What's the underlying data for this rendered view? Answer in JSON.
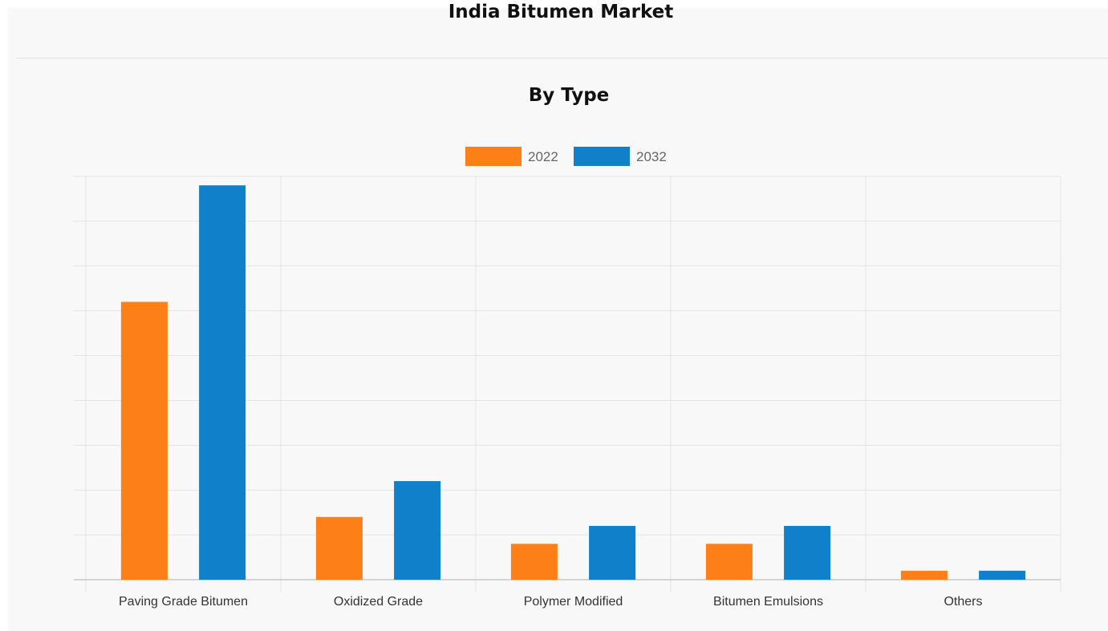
{
  "header": {
    "title": "India Bitumen Market"
  },
  "chart_data": {
    "type": "bar",
    "title": "By Type",
    "categories": [
      "Paving Grade Bitumen",
      "Oxidized Grade",
      "Polymer Modified",
      "Bitumen Emulsions",
      "Others"
    ],
    "series": [
      {
        "name": "2022",
        "color": "#fd7f17",
        "values": [
          62,
          14,
          8,
          8,
          2
        ]
      },
      {
        "name": "2032",
        "color": "#0f80c9",
        "values": [
          88,
          22,
          12,
          12,
          2
        ]
      }
    ],
    "ylim": [
      0,
      90
    ],
    "grid": true,
    "legend": "top-center"
  }
}
